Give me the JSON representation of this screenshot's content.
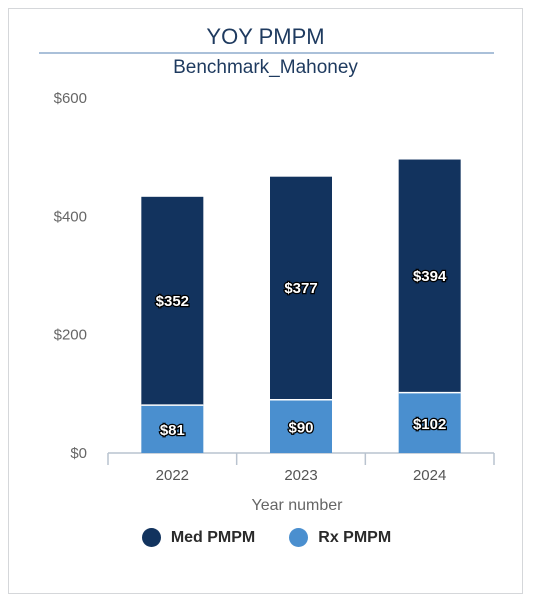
{
  "header": {
    "title": "YOY PMPM",
    "subtitle": "Benchmark_Mahoney"
  },
  "colors": {
    "med": "#12335e",
    "rx": "#4a8fcf"
  },
  "chart_data": {
    "type": "bar",
    "stacked": true,
    "categories": [
      "2022",
      "2023",
      "2024"
    ],
    "series": [
      {
        "name": "Rx PMPM",
        "values": [
          81,
          90,
          102
        ],
        "labels": [
          "$81",
          "$90",
          "$102"
        ]
      },
      {
        "name": "Med PMPM",
        "values": [
          352,
          377,
          394
        ],
        "labels": [
          "$352",
          "$377",
          "$394"
        ]
      }
    ],
    "xlabel": "Year number",
    "ylabel": "",
    "ylim": [
      0,
      600
    ],
    "yticks": [
      {
        "value": 0,
        "label": "$0"
      },
      {
        "value": 200,
        "label": "$200"
      },
      {
        "value": 400,
        "label": "$400"
      },
      {
        "value": 600,
        "label": "$600"
      }
    ],
    "grid": false,
    "legend": "bottom-center"
  },
  "legend": {
    "items": [
      {
        "label": "Med PMPM",
        "color_key": "med"
      },
      {
        "label": "Rx PMPM",
        "color_key": "rx"
      }
    ]
  }
}
